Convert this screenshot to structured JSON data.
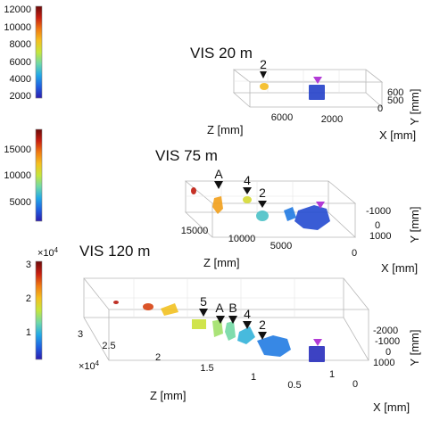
{
  "colormap": [
    "#2b1cae",
    "#1f5fe0",
    "#23a8e6",
    "#6fd8a8",
    "#c5e63c",
    "#f4c020",
    "#f07a12",
    "#c81e10",
    "#6a0a0a"
  ],
  "marker_colors": {
    "source": "#b23bd6",
    "event": "#111111"
  },
  "chart_data": [
    {
      "type": "scatter",
      "title": "VIS 20 m",
      "xlabel": "Z [mm]",
      "ylabel": "Y [mm]",
      "zlabel": "X [mm]",
      "x_ticks": [
        "6000",
        "2000"
      ],
      "y_ticks": [
        "600",
        "500",
        "0"
      ],
      "colorbar_ticks": [
        "12000",
        "10000",
        "8000",
        "6000",
        "4000",
        "2000"
      ],
      "colorbar_range": [
        1000,
        12800
      ],
      "annotations": [
        "2"
      ],
      "clusters": [
        {
          "z": 1500,
          "value": 1800,
          "label": ""
        },
        {
          "z": 5500,
          "value": 8500,
          "label": "2"
        }
      ]
    },
    {
      "type": "scatter",
      "title": "VIS 75 m",
      "xlabel": "Z [mm]",
      "ylabel": "Y [mm]",
      "zlabel": "X [mm]",
      "x_ticks": [
        "15000",
        "10000",
        "5000",
        "0"
      ],
      "y_ticks": [
        "-1000",
        "0",
        "1000"
      ],
      "colorbar_ticks": [
        "15000",
        "10000",
        "5000"
      ],
      "colorbar_range": [
        1000,
        18500
      ],
      "annotations": [
        "A",
        "4",
        "2"
      ],
      "clusters": [
        {
          "z": 2000,
          "value": 2500,
          "label": ""
        },
        {
          "z": 5500,
          "value": 4000,
          "label": ""
        },
        {
          "z": 7500,
          "value": 6500,
          "label": "2"
        },
        {
          "z": 9500,
          "value": 10500,
          "label": "4"
        },
        {
          "z": 11500,
          "value": 13000,
          "label": "A"
        },
        {
          "z": 14000,
          "value": 16500,
          "label": ""
        }
      ]
    },
    {
      "type": "scatter",
      "title": "VIS 120 m",
      "xlabel": "Z [mm]",
      "ylabel": "Y [mm]",
      "zlabel": "X [mm]",
      "x_multiplier": "×10",
      "x_exponent": "4",
      "x_ticks": [
        "3",
        "2.5",
        "2",
        "1.5",
        "1",
        "0.5"
      ],
      "y_ticks": [
        "-2000",
        "-1000",
        "0",
        "1000"
      ],
      "x_depth_ticks": [
        "1",
        "0"
      ],
      "colorbar_multiplier": "×10",
      "colorbar_exponent": "4",
      "colorbar_ticks": [
        "3",
        "2",
        "1"
      ],
      "colorbar_range": [
        0.2,
        3.1
      ],
      "annotations": [
        "5",
        "A",
        "B",
        "4",
        "2"
      ],
      "clusters": [
        {
          "z": 0.3,
          "value": 0.3,
          "label": ""
        },
        {
          "z": 0.6,
          "value": 0.7,
          "label": "2"
        },
        {
          "z": 0.9,
          "value": 1.0,
          "label": "4"
        },
        {
          "z": 1.15,
          "value": 1.3,
          "label": "B"
        },
        {
          "z": 1.3,
          "value": 1.5,
          "label": "A"
        },
        {
          "z": 1.6,
          "value": 1.7,
          "label": "5"
        },
        {
          "z": 2.0,
          "value": 2.0,
          "label": ""
        },
        {
          "z": 2.4,
          "value": 2.6,
          "label": ""
        },
        {
          "z": 2.7,
          "value": 2.8,
          "label": ""
        }
      ]
    }
  ]
}
